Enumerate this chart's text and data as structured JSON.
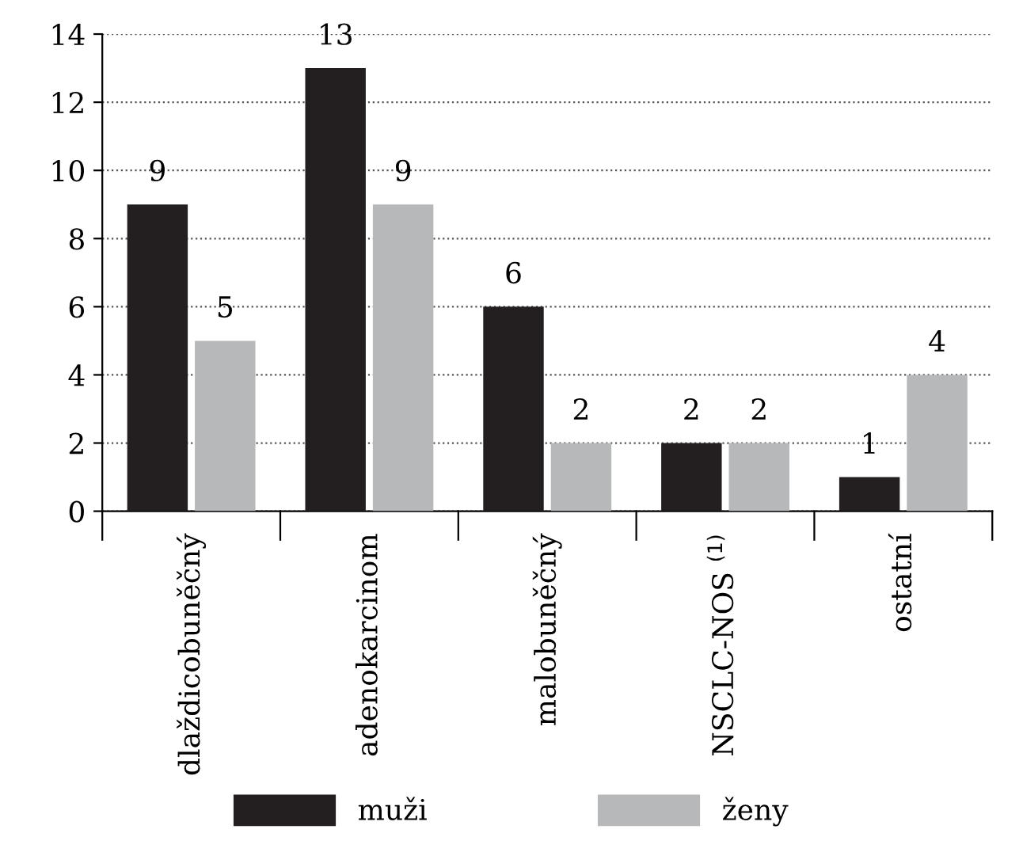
{
  "chart_data": {
    "type": "bar",
    "categories": [
      "dlaždicobuněčný",
      "adenokarcinom",
      "malobuněčný",
      "NSCLC-NOS $^{(1)}$",
      "ostatní"
    ],
    "series": [
      {
        "name": "muži",
        "color": "#231f20",
        "values": [
          9,
          13,
          6,
          2,
          1
        ]
      },
      {
        "name": "ženy",
        "color": "#b7b8ba",
        "values": [
          5,
          9,
          2,
          2,
          4
        ]
      }
    ],
    "ylim": [
      0,
      14
    ],
    "yticks": [
      0,
      2,
      4,
      6,
      8,
      10,
      12,
      14
    ],
    "grid": "y",
    "legend": "bottom",
    "data_labels": true
  }
}
